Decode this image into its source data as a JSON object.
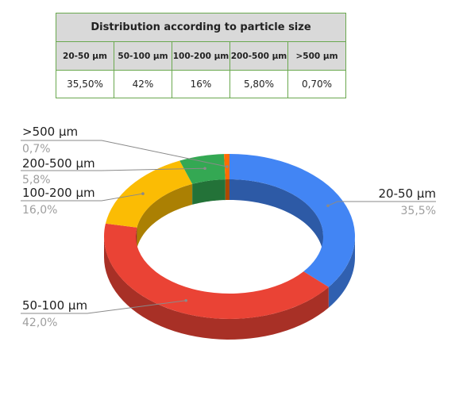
{
  "table": {
    "title": "Distribution according to particle size",
    "headers": [
      "20-50 µm",
      "50-100 µm",
      "100-200 µm",
      "200-500 µm",
      ">500 µm"
    ],
    "values": [
      "35,50%",
      "42%",
      "16%",
      "5,80%",
      "0,70%"
    ]
  },
  "chart_data": {
    "type": "pie",
    "title": "Distribution according to particle size",
    "categories": [
      "20-50 µm",
      "50-100 µm",
      "100-200 µm",
      "200-500 µm",
      ">500 µm"
    ],
    "values": [
      35.5,
      42.0,
      16.0,
      5.8,
      0.7
    ],
    "value_labels": [
      "35,5%",
      "42,0%",
      "16,0%",
      "5,8%",
      "0,7%"
    ],
    "colors": [
      "#4285f4",
      "#ea4335",
      "#fbbc04",
      "#34a853",
      "#ff6d01"
    ],
    "style": "3d-donut",
    "legend": "none"
  }
}
